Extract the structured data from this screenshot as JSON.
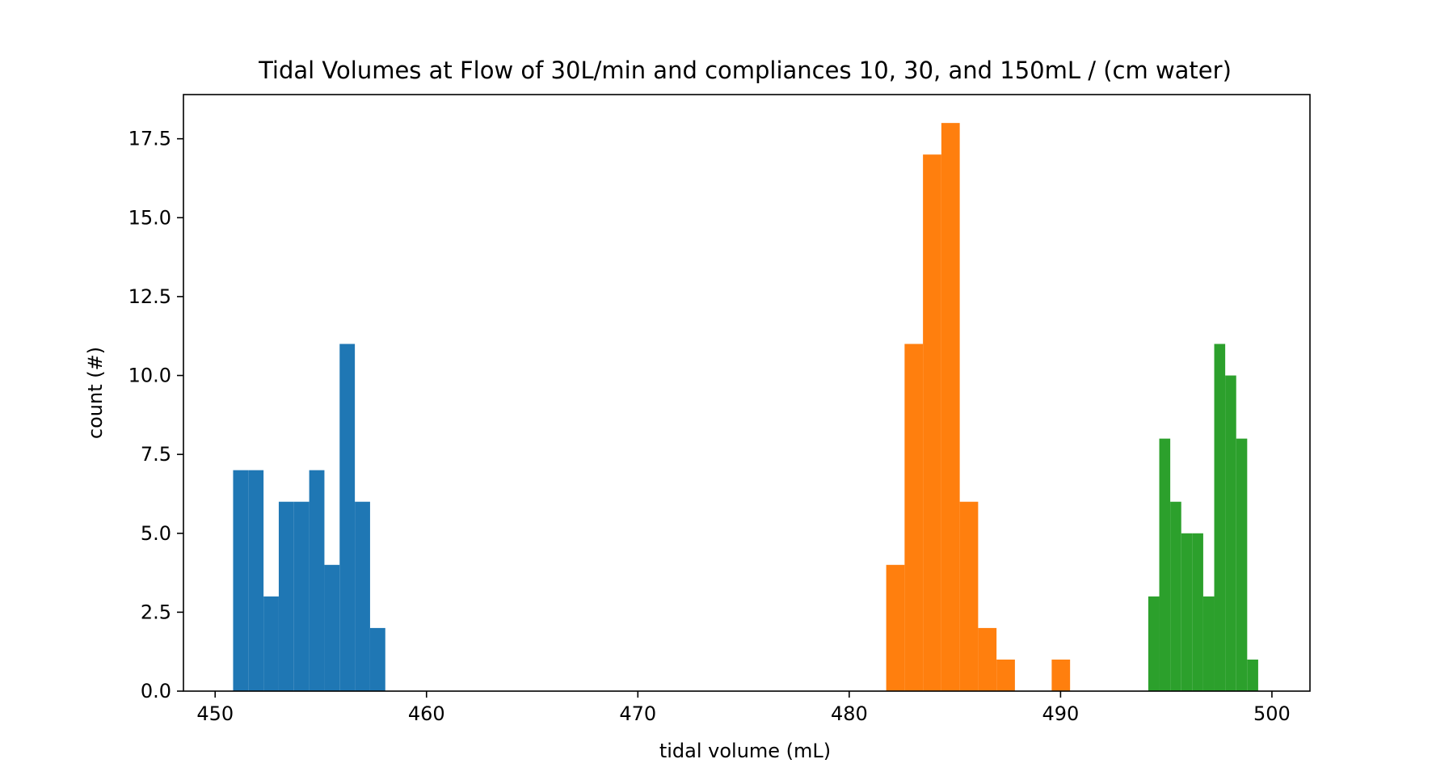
{
  "chart_data": {
    "type": "bar",
    "title": "Tidal Volumes at Flow of 30L/min and compliances 10, 30, and 150mL / (cm water)",
    "xlabel": "tidal volume (mL)",
    "ylabel": "count (#)",
    "xlim": [
      448.5,
      501.8
    ],
    "ylim": [
      0,
      18.9
    ],
    "xticks": [
      450,
      460,
      470,
      480,
      490,
      500
    ],
    "xtick_labels": [
      "450",
      "460",
      "470",
      "480",
      "490",
      "500"
    ],
    "yticks": [
      0,
      2.5,
      5,
      7.5,
      10,
      12.5,
      15,
      17.5
    ],
    "ytick_labels": [
      "0.0",
      "2.5",
      "5.0",
      "7.5",
      "10.0",
      "12.5",
      "15.0",
      "17.5"
    ],
    "grid": false,
    "legend": "none",
    "series": [
      {
        "color": "#1f77b4",
        "bins": [
          {
            "x0": 450.85,
            "x1": 451.57,
            "count": 7
          },
          {
            "x0": 451.57,
            "x1": 452.29,
            "count": 7
          },
          {
            "x0": 452.29,
            "x1": 453.01,
            "count": 3
          },
          {
            "x0": 453.01,
            "x1": 453.73,
            "count": 6
          },
          {
            "x0": 453.73,
            "x1": 454.45,
            "count": 6
          },
          {
            "x0": 454.45,
            "x1": 455.17,
            "count": 7
          },
          {
            "x0": 455.17,
            "x1": 455.89,
            "count": 4
          },
          {
            "x0": 455.89,
            "x1": 456.61,
            "count": 11
          },
          {
            "x0": 456.61,
            "x1": 457.33,
            "count": 6
          },
          {
            "x0": 457.33,
            "x1": 458.05,
            "count": 2
          }
        ]
      },
      {
        "color": "#ff7f0e",
        "bins": [
          {
            "x0": 481.75,
            "x1": 482.62,
            "count": 4
          },
          {
            "x0": 482.62,
            "x1": 483.49,
            "count": 11
          },
          {
            "x0": 483.49,
            "x1": 484.36,
            "count": 17
          },
          {
            "x0": 484.36,
            "x1": 485.23,
            "count": 18
          },
          {
            "x0": 485.23,
            "x1": 486.1,
            "count": 6
          },
          {
            "x0": 486.1,
            "x1": 486.97,
            "count": 2
          },
          {
            "x0": 486.97,
            "x1": 487.84,
            "count": 1
          },
          {
            "x0": 487.84,
            "x1": 488.71,
            "count": 0
          },
          {
            "x0": 488.71,
            "x1": 489.58,
            "count": 0
          },
          {
            "x0": 489.58,
            "x1": 490.45,
            "count": 1
          }
        ]
      },
      {
        "color": "#2ca02c",
        "bins": [
          {
            "x0": 494.15,
            "x1": 494.67,
            "count": 3
          },
          {
            "x0": 494.67,
            "x1": 495.19,
            "count": 8
          },
          {
            "x0": 495.19,
            "x1": 495.71,
            "count": 6
          },
          {
            "x0": 495.71,
            "x1": 496.23,
            "count": 5
          },
          {
            "x0": 496.23,
            "x1": 496.75,
            "count": 5
          },
          {
            "x0": 496.75,
            "x1": 497.27,
            "count": 3
          },
          {
            "x0": 497.27,
            "x1": 497.79,
            "count": 11
          },
          {
            "x0": 497.79,
            "x1": 498.31,
            "count": 10
          },
          {
            "x0": 498.31,
            "x1": 498.83,
            "count": 8
          },
          {
            "x0": 498.83,
            "x1": 499.35,
            "count": 1
          }
        ]
      }
    ]
  }
}
